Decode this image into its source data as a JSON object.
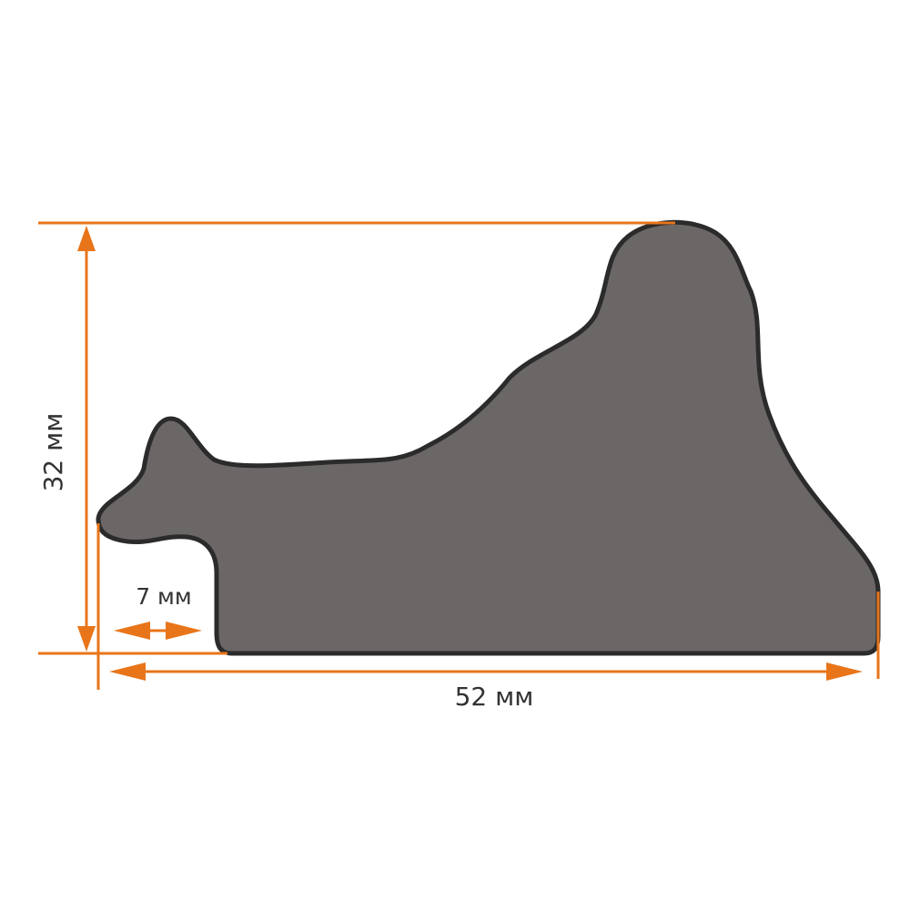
{
  "dimensions": {
    "height": "32 мм",
    "rabbet": "7 мм",
    "width": "52 мм"
  }
}
